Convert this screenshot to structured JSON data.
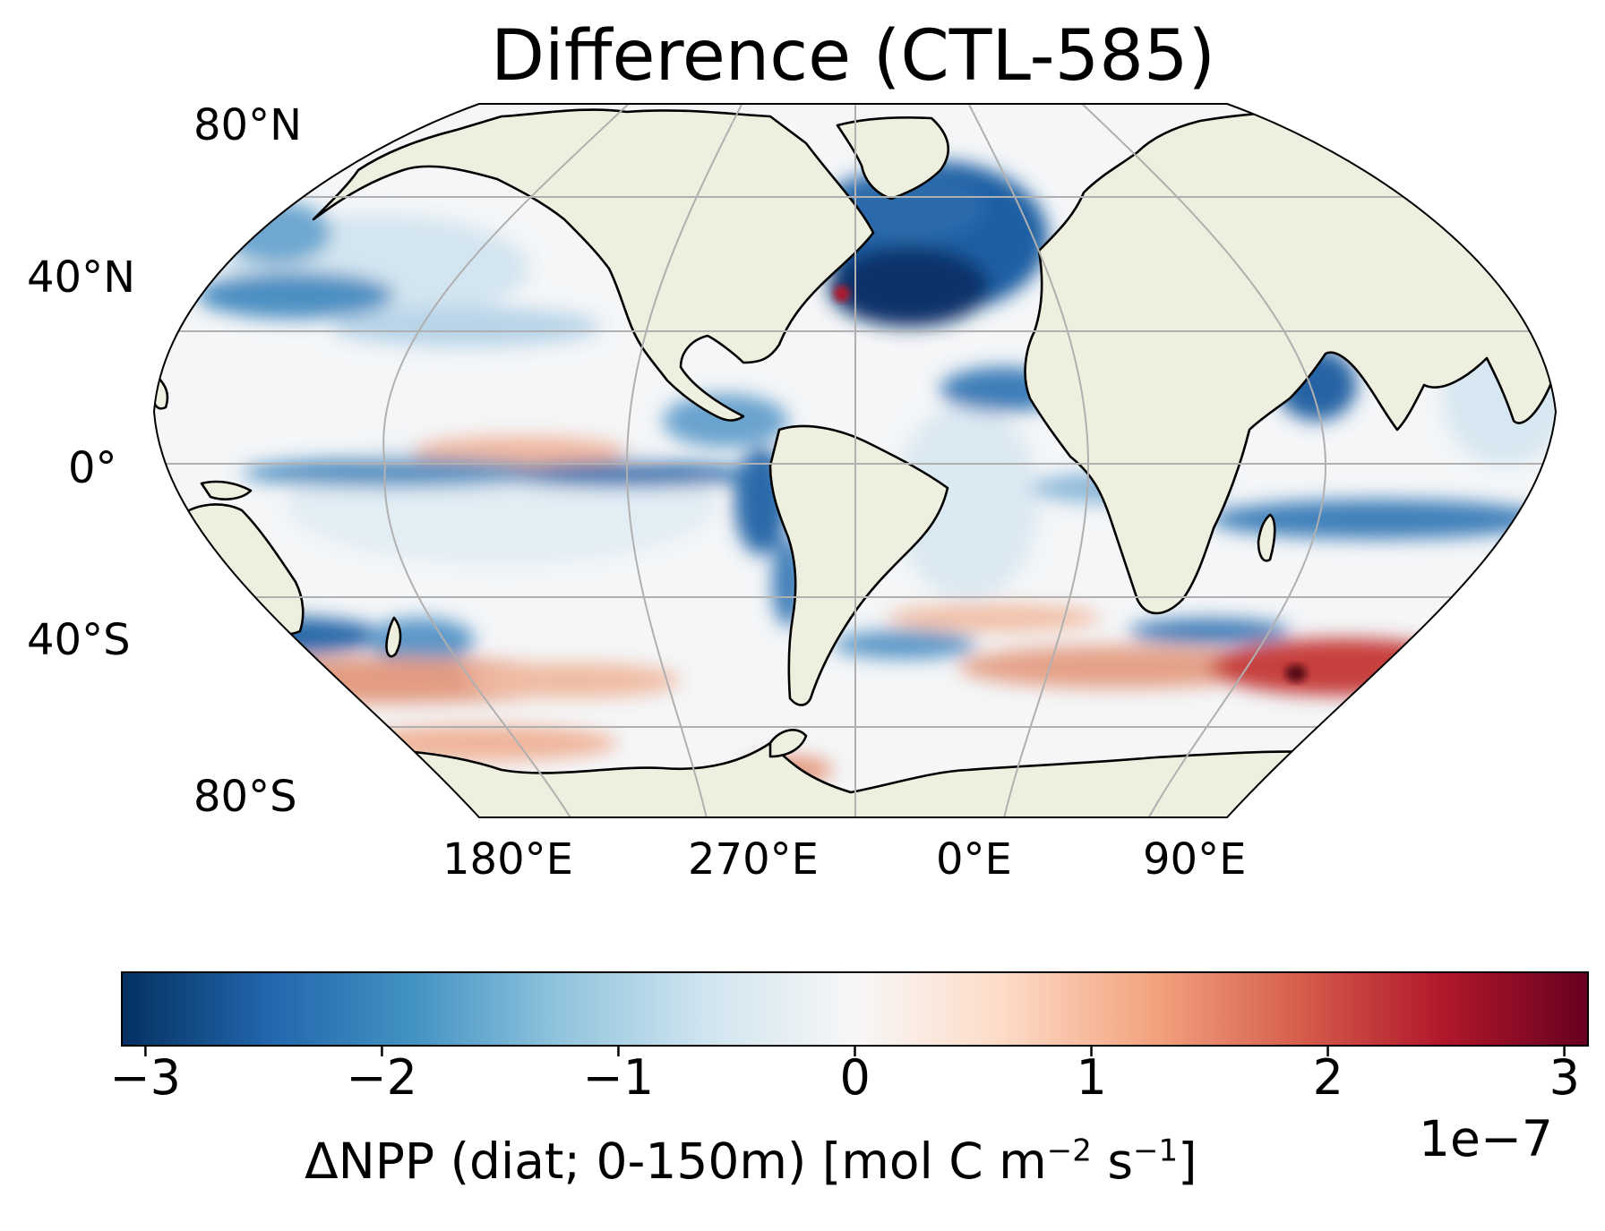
{
  "title": "Difference (CTL-585)",
  "map": {
    "projection": "Robinson",
    "central_longitude": "300°E",
    "lat_labels": [
      "80°N",
      "40°N",
      "0°",
      "40°S",
      "80°S"
    ],
    "lon_labels": [
      "180°E",
      "270°E",
      "0°E",
      "90°E"
    ],
    "gridlines": true,
    "land_color": "#efefdf",
    "coastline_color": "#000000"
  },
  "colorbar": {
    "colormap": "RdBu_r",
    "vmin": -3.1,
    "vmax": 3.1,
    "ticks": [
      "−3",
      "−2",
      "−1",
      "0",
      "1",
      "2",
      "3"
    ],
    "tick_values": [
      -3,
      -2,
      -1,
      0,
      1,
      2,
      3
    ],
    "label_prefix": "ΔNPP (diat; 0-150m) [mol C m",
    "label_exp1": "−2",
    "label_mid": " s",
    "label_exp2": "−1",
    "label_suffix": "]",
    "offset_text": "1e−7"
  },
  "chart_data": {
    "type": "heatmap",
    "title": "Difference (CTL-585)",
    "xlabel": "",
    "ylabel": "",
    "colorbar_label": "ΔNPP (diat; 0-150m) [mol C m−2 s−1]",
    "colorbar_scale": "1e−7",
    "vrange": [
      -3.1,
      3.1
    ],
    "x_ticks": [
      "180°E",
      "270°E",
      "0°E",
      "90°E"
    ],
    "y_ticks": [
      "80°N",
      "40°N",
      "0°",
      "40°S",
      "80°S"
    ]
  }
}
